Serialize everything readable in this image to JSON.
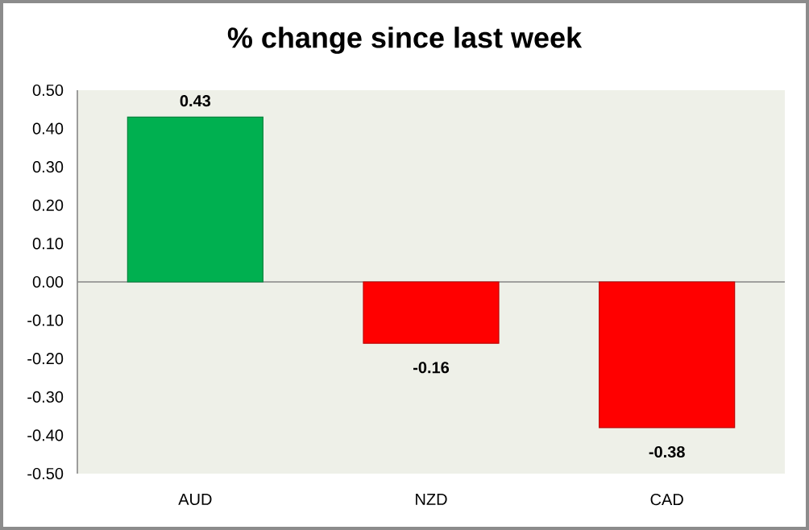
{
  "chart_data": {
    "type": "bar",
    "title": "% change since last week",
    "categories": [
      "AUD",
      "NZD",
      "CAD"
    ],
    "values": [
      0.43,
      -0.16,
      -0.38
    ],
    "colors": [
      "#00b050",
      "#ff0000",
      "#ff0000"
    ],
    "ylim": [
      -0.5,
      0.5
    ],
    "yticks": [
      {
        "value": -0.5,
        "label": "-0.50"
      },
      {
        "value": -0.4,
        "label": "-0.40"
      },
      {
        "value": -0.3,
        "label": "-0.30"
      },
      {
        "value": -0.2,
        "label": "-0.20"
      },
      {
        "value": -0.1,
        "label": "-0.10"
      },
      {
        "value": 0,
        "label": "0.00"
      },
      {
        "value": 0.1,
        "label": "0.10"
      },
      {
        "value": 0.2,
        "label": "0.20"
      },
      {
        "value": 0.3,
        "label": "0.30"
      },
      {
        "value": 0.4,
        "label": "0.40"
      },
      {
        "value": 0.5,
        "label": "0.50"
      }
    ],
    "data_labels": true
  }
}
